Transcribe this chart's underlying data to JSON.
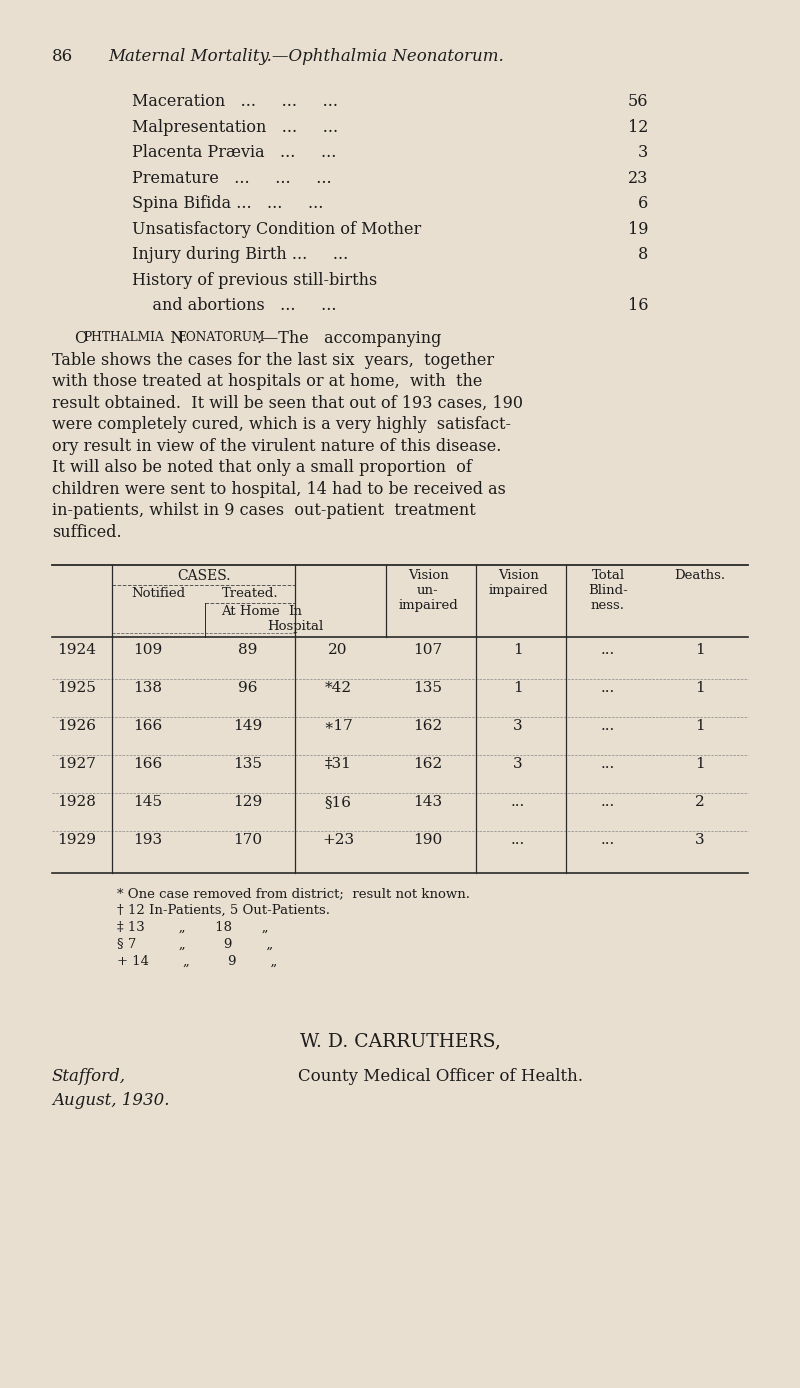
{
  "bg_color": "#e8dfd0",
  "page_number": "86",
  "page_header": "Maternal Mortality.—Ophthalmia Neonatorum.",
  "list_items": [
    {
      "label": "Maceration   ...     ...     ...  56",
      "indent": 130
    },
    {
      "label": "Malpresentation   ...     ...  ...  12",
      "indent": 130
    },
    {
      "label": "Placenta Prævia   ...     ...  ...   3",
      "indent": 130
    },
    {
      "label": "Premature   ...     ...     ...  23",
      "indent": 130
    },
    {
      "label": "Spina Bifida ...   ...     ...   6",
      "indent": 130
    },
    {
      "label": "Unsatisfactory Condition of Mother  19",
      "indent": 130
    },
    {
      "label": "Injury during Birth ...     ...   8",
      "indent": 130
    },
    {
      "label": "History of previous still-births",
      "indent": 130
    },
    {
      "label": "        and abortions   ...     ...  16",
      "indent": 130
    }
  ],
  "body_lines": [
    "    Ophthalmia  Neonatorum.—The   accompanying",
    "Table shows the cases for the last six  years,  together",
    "with those treated at hospitals or at home,  with  the",
    "result obtained.  It will be seen that out of 193 cases, 190",
    "were completely cured, which is a very highly  satisfact-",
    "ory result in view of the virulent nature of this disease.",
    "It will also be noted that only a small proportion  of",
    "children were sent to hospital, 14 had to be received as",
    "in-patients, whilst in 9 cases  out-patient  treatment",
    "sufficed."
  ],
  "table_rows": [
    {
      "year": "1924",
      "notified": "109",
      "at_home": "89",
      "in_hosp": "20",
      "vision_un": "107",
      "vision_imp": "1",
      "total_blind": "...",
      "deaths": "1"
    },
    {
      "year": "1925",
      "notified": "138",
      "at_home": "96",
      "in_hosp": "*42",
      "vision_un": "135",
      "vision_imp": "1",
      "total_blind": "...",
      "deaths": "1"
    },
    {
      "year": "1926",
      "notified": "166",
      "at_home": "149",
      "in_hosp": "∗17",
      "vision_un": "162",
      "vision_imp": "3",
      "total_blind": "...",
      "deaths": "1"
    },
    {
      "year": "1927",
      "notified": "166",
      "at_home": "135",
      "in_hosp": "‡31",
      "vision_un": "162",
      "vision_imp": "3",
      "total_blind": "...",
      "deaths": "1"
    },
    {
      "year": "1928",
      "notified": "145",
      "at_home": "129",
      "in_hosp": "§16",
      "vision_un": "143",
      "vision_imp": "...",
      "total_blind": "...",
      "deaths": "2"
    },
    {
      "year": "1929",
      "notified": "193",
      "at_home": "170",
      "in_hosp": "+23",
      "vision_un": "190",
      "vision_imp": "...",
      "total_blind": "...",
      "deaths": "3"
    }
  ],
  "footnotes": [
    "* One case removed from district;  result not known.",
    "† 12 In-Patients, 5 Out-Patients.",
    "‡ 13        „       18       „",
    "§ 7          „         9        „",
    "+ 14        „         9        „"
  ],
  "sig_name": "W. D. CARRUTHERS,",
  "sig_place": "Stafford,",
  "sig_title": "County Medical Officer of Health.",
  "sig_date": "August, 1930."
}
